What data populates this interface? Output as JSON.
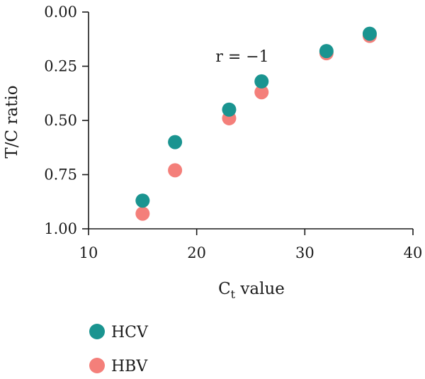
{
  "chart_data": {
    "type": "scatter",
    "xlabel": "C",
    "xlabel_sub": "t",
    "xlabel_rest": " value",
    "ylabel": "T/C ratio",
    "xlim": [
      10,
      40
    ],
    "ylim": [
      0,
      1
    ],
    "y_inverted": true,
    "xticks": [
      10,
      20,
      30,
      40
    ],
    "yticks": [
      0.0,
      0.25,
      0.5,
      0.75,
      1.0
    ],
    "xtick_labels": [
      "10",
      "20",
      "30",
      "40"
    ],
    "ytick_labels": [
      "0.00",
      "0.25",
      "0.50",
      "0.75",
      "1.00"
    ],
    "grid": false,
    "legend_position": "bottom-left",
    "annotation": "r = −1",
    "series": [
      {
        "name": "HCV",
        "color": "#1a9490",
        "x": [
          15,
          18,
          23,
          26,
          32,
          36
        ],
        "y": [
          0.87,
          0.6,
          0.45,
          0.32,
          0.18,
          0.1
        ]
      },
      {
        "name": "HBV",
        "color": "#f47f7a",
        "x": [
          15,
          18,
          23,
          26,
          32,
          36
        ],
        "y": [
          0.93,
          0.73,
          0.49,
          0.37,
          0.19,
          0.11
        ]
      }
    ]
  }
}
